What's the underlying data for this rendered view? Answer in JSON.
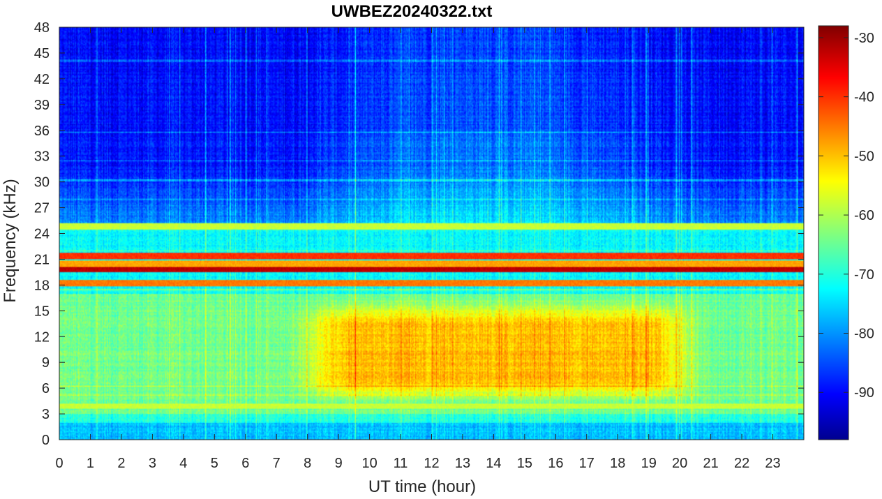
{
  "chart_data": {
    "type": "heatmap",
    "title": "UWBEZ20240322.txt",
    "xlabel": "UT time (hour)",
    "ylabel": "Frequency (kHz)",
    "xlim": [
      0,
      24
    ],
    "ylim": [
      0,
      48
    ],
    "x_ticks": [
      "0",
      "1",
      "2",
      "3",
      "4",
      "5",
      "6",
      "7",
      "8",
      "9",
      "10",
      "11",
      "12",
      "13",
      "14",
      "15",
      "16",
      "17",
      "18",
      "19",
      "20",
      "21",
      "22",
      "23"
    ],
    "y_ticks": [
      "0",
      "3",
      "6",
      "9",
      "12",
      "15",
      "18",
      "21",
      "24",
      "27",
      "30",
      "33",
      "36",
      "39",
      "42",
      "45",
      "48"
    ],
    "colorbar": {
      "colormap": "jet",
      "clim": [
        -98,
        -28
      ],
      "ticks": [
        "-90",
        "-80",
        "-70",
        "-60",
        "-50",
        "-40",
        "-30"
      ]
    },
    "features": [
      {
        "description": "strong continuous transmitter line",
        "frequency_khz": 19.8,
        "level_db": -32
      },
      {
        "description": "strong transmitter line",
        "frequency_khz": 21.4,
        "level_db": -40
      },
      {
        "description": "transmitter line",
        "frequency_khz": 18.2,
        "level_db": -45
      },
      {
        "description": "transmitter line",
        "frequency_khz": 20.5,
        "level_db": -48
      },
      {
        "description": "transmitter line",
        "frequency_khz": 24.8,
        "level_db": -58
      },
      {
        "description": "transmitter line",
        "frequency_khz": 3.9,
        "level_db": -58
      },
      {
        "description": "broadband daytime noise",
        "frequency_khz": [
          4,
          17
        ],
        "time_hours": [
          9,
          20
        ],
        "level_db": -52
      },
      {
        "description": "upper band background",
        "frequency_khz": [
          25,
          48
        ],
        "level_db": -88
      }
    ]
  }
}
